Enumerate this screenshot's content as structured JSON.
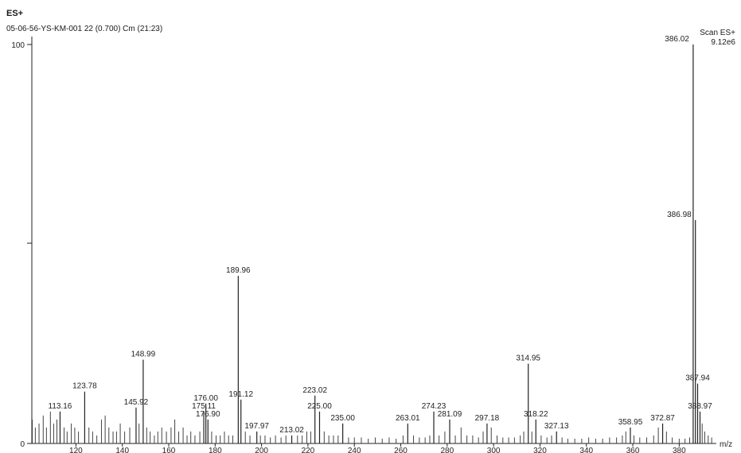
{
  "header": {
    "mode": "ES+",
    "sample": "05-06-56-YS-KM-001 22 (0.700) Cm (21:23)",
    "scan_label": "Scan ES+",
    "intensity": "9.12e6"
  },
  "chart_data": {
    "type": "bar",
    "title": "",
    "xlabel": "m/z",
    "ylabel": "",
    "xlim": [
      101,
      396
    ],
    "ylim": [
      0,
      100
    ],
    "x_ticks": [
      120,
      140,
      160,
      180,
      200,
      220,
      240,
      260,
      280,
      300,
      320,
      340,
      360,
      380
    ],
    "y_ticks": [
      0,
      100
    ],
    "labeled_peaks": [
      {
        "mz": 113.16,
        "intensity": 8,
        "label": "113.16"
      },
      {
        "mz": 123.78,
        "intensity": 13,
        "label": "123.78"
      },
      {
        "mz": 145.92,
        "intensity": 9,
        "label": "145.92"
      },
      {
        "mz": 148.99,
        "intensity": 21,
        "label": "148.99"
      },
      {
        "mz": 175.11,
        "intensity": 8,
        "label": "175.11"
      },
      {
        "mz": 176.0,
        "intensity": 10,
        "label": "176.00"
      },
      {
        "mz": 176.9,
        "intensity": 6,
        "label": "176.90"
      },
      {
        "mz": 189.96,
        "intensity": 42,
        "label": "189.96"
      },
      {
        "mz": 191.12,
        "intensity": 11,
        "label": "191.12"
      },
      {
        "mz": 197.97,
        "intensity": 3,
        "label": "197.97"
      },
      {
        "mz": 213.02,
        "intensity": 2,
        "label": "213.02"
      },
      {
        "mz": 223.02,
        "intensity": 12,
        "label": "223.02"
      },
      {
        "mz": 225.0,
        "intensity": 8,
        "label": "225.00"
      },
      {
        "mz": 235.0,
        "intensity": 5,
        "label": "235.00"
      },
      {
        "mz": 263.01,
        "intensity": 5,
        "label": "263.01"
      },
      {
        "mz": 274.23,
        "intensity": 8,
        "label": "274.23"
      },
      {
        "mz": 281.09,
        "intensity": 6,
        "label": "281.09"
      },
      {
        "mz": 297.18,
        "intensity": 5,
        "label": "297.18"
      },
      {
        "mz": 314.95,
        "intensity": 20,
        "label": "314.95"
      },
      {
        "mz": 318.22,
        "intensity": 6,
        "label": "318.22"
      },
      {
        "mz": 327.13,
        "intensity": 3,
        "label": "327.13"
      },
      {
        "mz": 358.95,
        "intensity": 4,
        "label": "358.95"
      },
      {
        "mz": 372.87,
        "intensity": 5,
        "label": "372.87"
      },
      {
        "mz": 386.02,
        "intensity": 100,
        "label": "386.02"
      },
      {
        "mz": 386.98,
        "intensity": 56,
        "label": "386.98"
      },
      {
        "mz": 387.94,
        "intensity": 15,
        "label": "387.94"
      },
      {
        "mz": 388.97,
        "intensity": 8,
        "label": "388.97"
      }
    ],
    "minor_peaks": [
      {
        "mz": 101.2,
        "intensity": 6
      },
      {
        "mz": 102.5,
        "intensity": 4
      },
      {
        "mz": 104.1,
        "intensity": 5
      },
      {
        "mz": 105.9,
        "intensity": 7
      },
      {
        "mz": 107.3,
        "intensity": 4
      },
      {
        "mz": 109.0,
        "intensity": 8
      },
      {
        "mz": 110.4,
        "intensity": 5
      },
      {
        "mz": 111.8,
        "intensity": 6
      },
      {
        "mz": 114.9,
        "intensity": 4
      },
      {
        "mz": 116.2,
        "intensity": 3
      },
      {
        "mz": 118.0,
        "intensity": 5
      },
      {
        "mz": 119.5,
        "intensity": 4
      },
      {
        "mz": 121.1,
        "intensity": 3
      },
      {
        "mz": 125.6,
        "intensity": 4
      },
      {
        "mz": 127.2,
        "intensity": 3
      },
      {
        "mz": 129.0,
        "intensity": 2
      },
      {
        "mz": 131.0,
        "intensity": 6
      },
      {
        "mz": 132.6,
        "intensity": 7
      },
      {
        "mz": 134.2,
        "intensity": 4
      },
      {
        "mz": 136.0,
        "intensity": 3
      },
      {
        "mz": 137.5,
        "intensity": 3
      },
      {
        "mz": 139.1,
        "intensity": 5
      },
      {
        "mz": 141.0,
        "intensity": 3
      },
      {
        "mz": 143.2,
        "intensity": 4
      },
      {
        "mz": 147.2,
        "intensity": 5
      },
      {
        "mz": 150.5,
        "intensity": 4
      },
      {
        "mz": 152.0,
        "intensity": 3
      },
      {
        "mz": 153.8,
        "intensity": 2
      },
      {
        "mz": 155.3,
        "intensity": 3
      },
      {
        "mz": 157.0,
        "intensity": 4
      },
      {
        "mz": 159.0,
        "intensity": 3
      },
      {
        "mz": 161.0,
        "intensity": 4
      },
      {
        "mz": 162.6,
        "intensity": 6
      },
      {
        "mz": 164.3,
        "intensity": 3
      },
      {
        "mz": 166.2,
        "intensity": 4
      },
      {
        "mz": 167.9,
        "intensity": 2
      },
      {
        "mz": 169.5,
        "intensity": 3
      },
      {
        "mz": 171.3,
        "intensity": 2
      },
      {
        "mz": 173.4,
        "intensity": 3
      },
      {
        "mz": 178.5,
        "intensity": 3
      },
      {
        "mz": 180.4,
        "intensity": 2
      },
      {
        "mz": 182.2,
        "intensity": 2
      },
      {
        "mz": 184.0,
        "intensity": 3
      },
      {
        "mz": 185.8,
        "intensity": 2
      },
      {
        "mz": 187.6,
        "intensity": 2
      },
      {
        "mz": 193.0,
        "intensity": 3
      },
      {
        "mz": 195.0,
        "intensity": 2
      },
      {
        "mz": 199.5,
        "intensity": 2
      },
      {
        "mz": 201.5,
        "intensity": 2
      },
      {
        "mz": 203.8,
        "intensity": 1.5
      },
      {
        "mz": 206.0,
        "intensity": 2
      },
      {
        "mz": 208.4,
        "intensity": 1.5
      },
      {
        "mz": 210.5,
        "intensity": 2
      },
      {
        "mz": 215.5,
        "intensity": 2
      },
      {
        "mz": 217.5,
        "intensity": 2
      },
      {
        "mz": 219.5,
        "intensity": 3
      },
      {
        "mz": 221.2,
        "intensity": 3
      },
      {
        "mz": 227.0,
        "intensity": 3
      },
      {
        "mz": 229.0,
        "intensity": 2
      },
      {
        "mz": 231.0,
        "intensity": 2
      },
      {
        "mz": 233.0,
        "intensity": 2
      },
      {
        "mz": 237.5,
        "intensity": 1.5
      },
      {
        "mz": 240.0,
        "intensity": 1.5
      },
      {
        "mz": 243.0,
        "intensity": 1.5
      },
      {
        "mz": 246.0,
        "intensity": 1.2
      },
      {
        "mz": 249.0,
        "intensity": 1.5
      },
      {
        "mz": 252.0,
        "intensity": 1.2
      },
      {
        "mz": 255.0,
        "intensity": 1.5
      },
      {
        "mz": 258.0,
        "intensity": 1.2
      },
      {
        "mz": 261.0,
        "intensity": 2
      },
      {
        "mz": 265.5,
        "intensity": 2
      },
      {
        "mz": 268.0,
        "intensity": 1.5
      },
      {
        "mz": 270.5,
        "intensity": 1.5
      },
      {
        "mz": 272.5,
        "intensity": 2
      },
      {
        "mz": 276.5,
        "intensity": 2
      },
      {
        "mz": 279.0,
        "intensity": 3
      },
      {
        "mz": 283.5,
        "intensity": 2
      },
      {
        "mz": 286.0,
        "intensity": 4
      },
      {
        "mz": 288.5,
        "intensity": 2
      },
      {
        "mz": 291.0,
        "intensity": 2
      },
      {
        "mz": 293.5,
        "intensity": 1.5
      },
      {
        "mz": 295.5,
        "intensity": 3
      },
      {
        "mz": 299.0,
        "intensity": 4
      },
      {
        "mz": 301.5,
        "intensity": 2
      },
      {
        "mz": 304.0,
        "intensity": 1.5
      },
      {
        "mz": 306.5,
        "intensity": 1.5
      },
      {
        "mz": 309.0,
        "intensity": 1.5
      },
      {
        "mz": 311.5,
        "intensity": 2
      },
      {
        "mz": 313.0,
        "intensity": 3
      },
      {
        "mz": 316.5,
        "intensity": 3
      },
      {
        "mz": 320.5,
        "intensity": 2
      },
      {
        "mz": 323.0,
        "intensity": 1.5
      },
      {
        "mz": 325.0,
        "intensity": 2
      },
      {
        "mz": 329.5,
        "intensity": 1.5
      },
      {
        "mz": 332.0,
        "intensity": 1.2
      },
      {
        "mz": 335.0,
        "intensity": 1.2
      },
      {
        "mz": 338.0,
        "intensity": 1.2
      },
      {
        "mz": 341.0,
        "intensity": 1.5
      },
      {
        "mz": 344.0,
        "intensity": 1.2
      },
      {
        "mz": 347.0,
        "intensity": 1.2
      },
      {
        "mz": 350.0,
        "intensity": 1.5
      },
      {
        "mz": 353.0,
        "intensity": 1.5
      },
      {
        "mz": 355.5,
        "intensity": 2
      },
      {
        "mz": 357.0,
        "intensity": 3
      },
      {
        "mz": 360.5,
        "intensity": 2
      },
      {
        "mz": 363.0,
        "intensity": 1.5
      },
      {
        "mz": 366.0,
        "intensity": 1.5
      },
      {
        "mz": 369.0,
        "intensity": 2
      },
      {
        "mz": 371.0,
        "intensity": 4
      },
      {
        "mz": 374.5,
        "intensity": 3
      },
      {
        "mz": 377.0,
        "intensity": 1.5
      },
      {
        "mz": 380.0,
        "intensity": 1.2
      },
      {
        "mz": 382.5,
        "intensity": 1.2
      },
      {
        "mz": 384.5,
        "intensity": 1.5
      },
      {
        "mz": 389.9,
        "intensity": 5
      },
      {
        "mz": 391.0,
        "intensity": 3
      },
      {
        "mz": 392.5,
        "intensity": 2
      },
      {
        "mz": 394.0,
        "intensity": 1.5
      }
    ]
  }
}
